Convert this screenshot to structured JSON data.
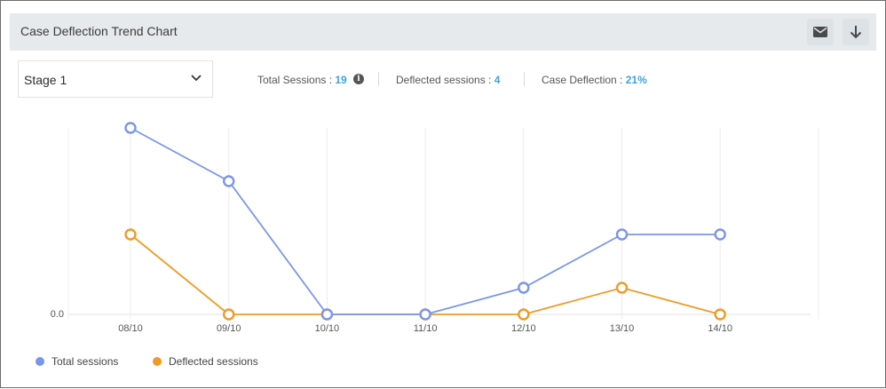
{
  "header": {
    "title": "Case Deflection Trend Chart",
    "mail_icon": "mail-icon",
    "download_icon": "download-icon"
  },
  "stage_select": {
    "value": "Stage 1"
  },
  "stats": {
    "total_label": "Total Sessions : ",
    "total_value": "19",
    "deflected_label": "Deflected sessions : ",
    "deflected_value": "4",
    "deflection_label": "Case Deflection : ",
    "deflection_value": "21%"
  },
  "colors": {
    "total": "#7b96e8",
    "deflected": "#f09a25",
    "accent": "#3ea2dc"
  },
  "chart_data": {
    "type": "line",
    "categories": [
      "08/10",
      "09/10",
      "10/10",
      "11/10",
      "12/10",
      "13/10",
      "14/10"
    ],
    "series": [
      {
        "name": "Total sessions",
        "values": [
          7,
          5,
          0,
          0,
          1,
          3,
          3
        ]
      },
      {
        "name": "Deflected sessions",
        "values": [
          3,
          0,
          0,
          0,
          0,
          1,
          0
        ]
      }
    ],
    "y_tick_labels": [
      "0.0"
    ],
    "ylim": [
      0,
      7
    ],
    "grid": "vertical",
    "legend": "bottom-left"
  }
}
